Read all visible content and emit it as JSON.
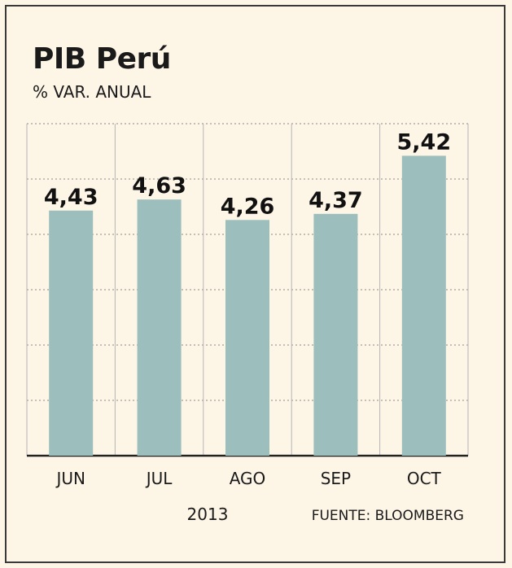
{
  "chart_data": {
    "type": "bar",
    "title": "PIB Perú",
    "subtitle": "% VAR. ANUAL",
    "categories": [
      "JUN",
      "JUL",
      "AGO",
      "SEP",
      "OCT"
    ],
    "values": [
      4.43,
      4.63,
      4.26,
      4.37,
      5.42
    ],
    "value_labels": [
      "4,43",
      "4,63",
      "4,26",
      "4,37",
      "5,42"
    ],
    "ylim": [
      0,
      6
    ],
    "grid": true,
    "bar_color": "#9cbfbd",
    "xlabel": "2013",
    "source": "FUENTE: BLOOMBERG"
  }
}
